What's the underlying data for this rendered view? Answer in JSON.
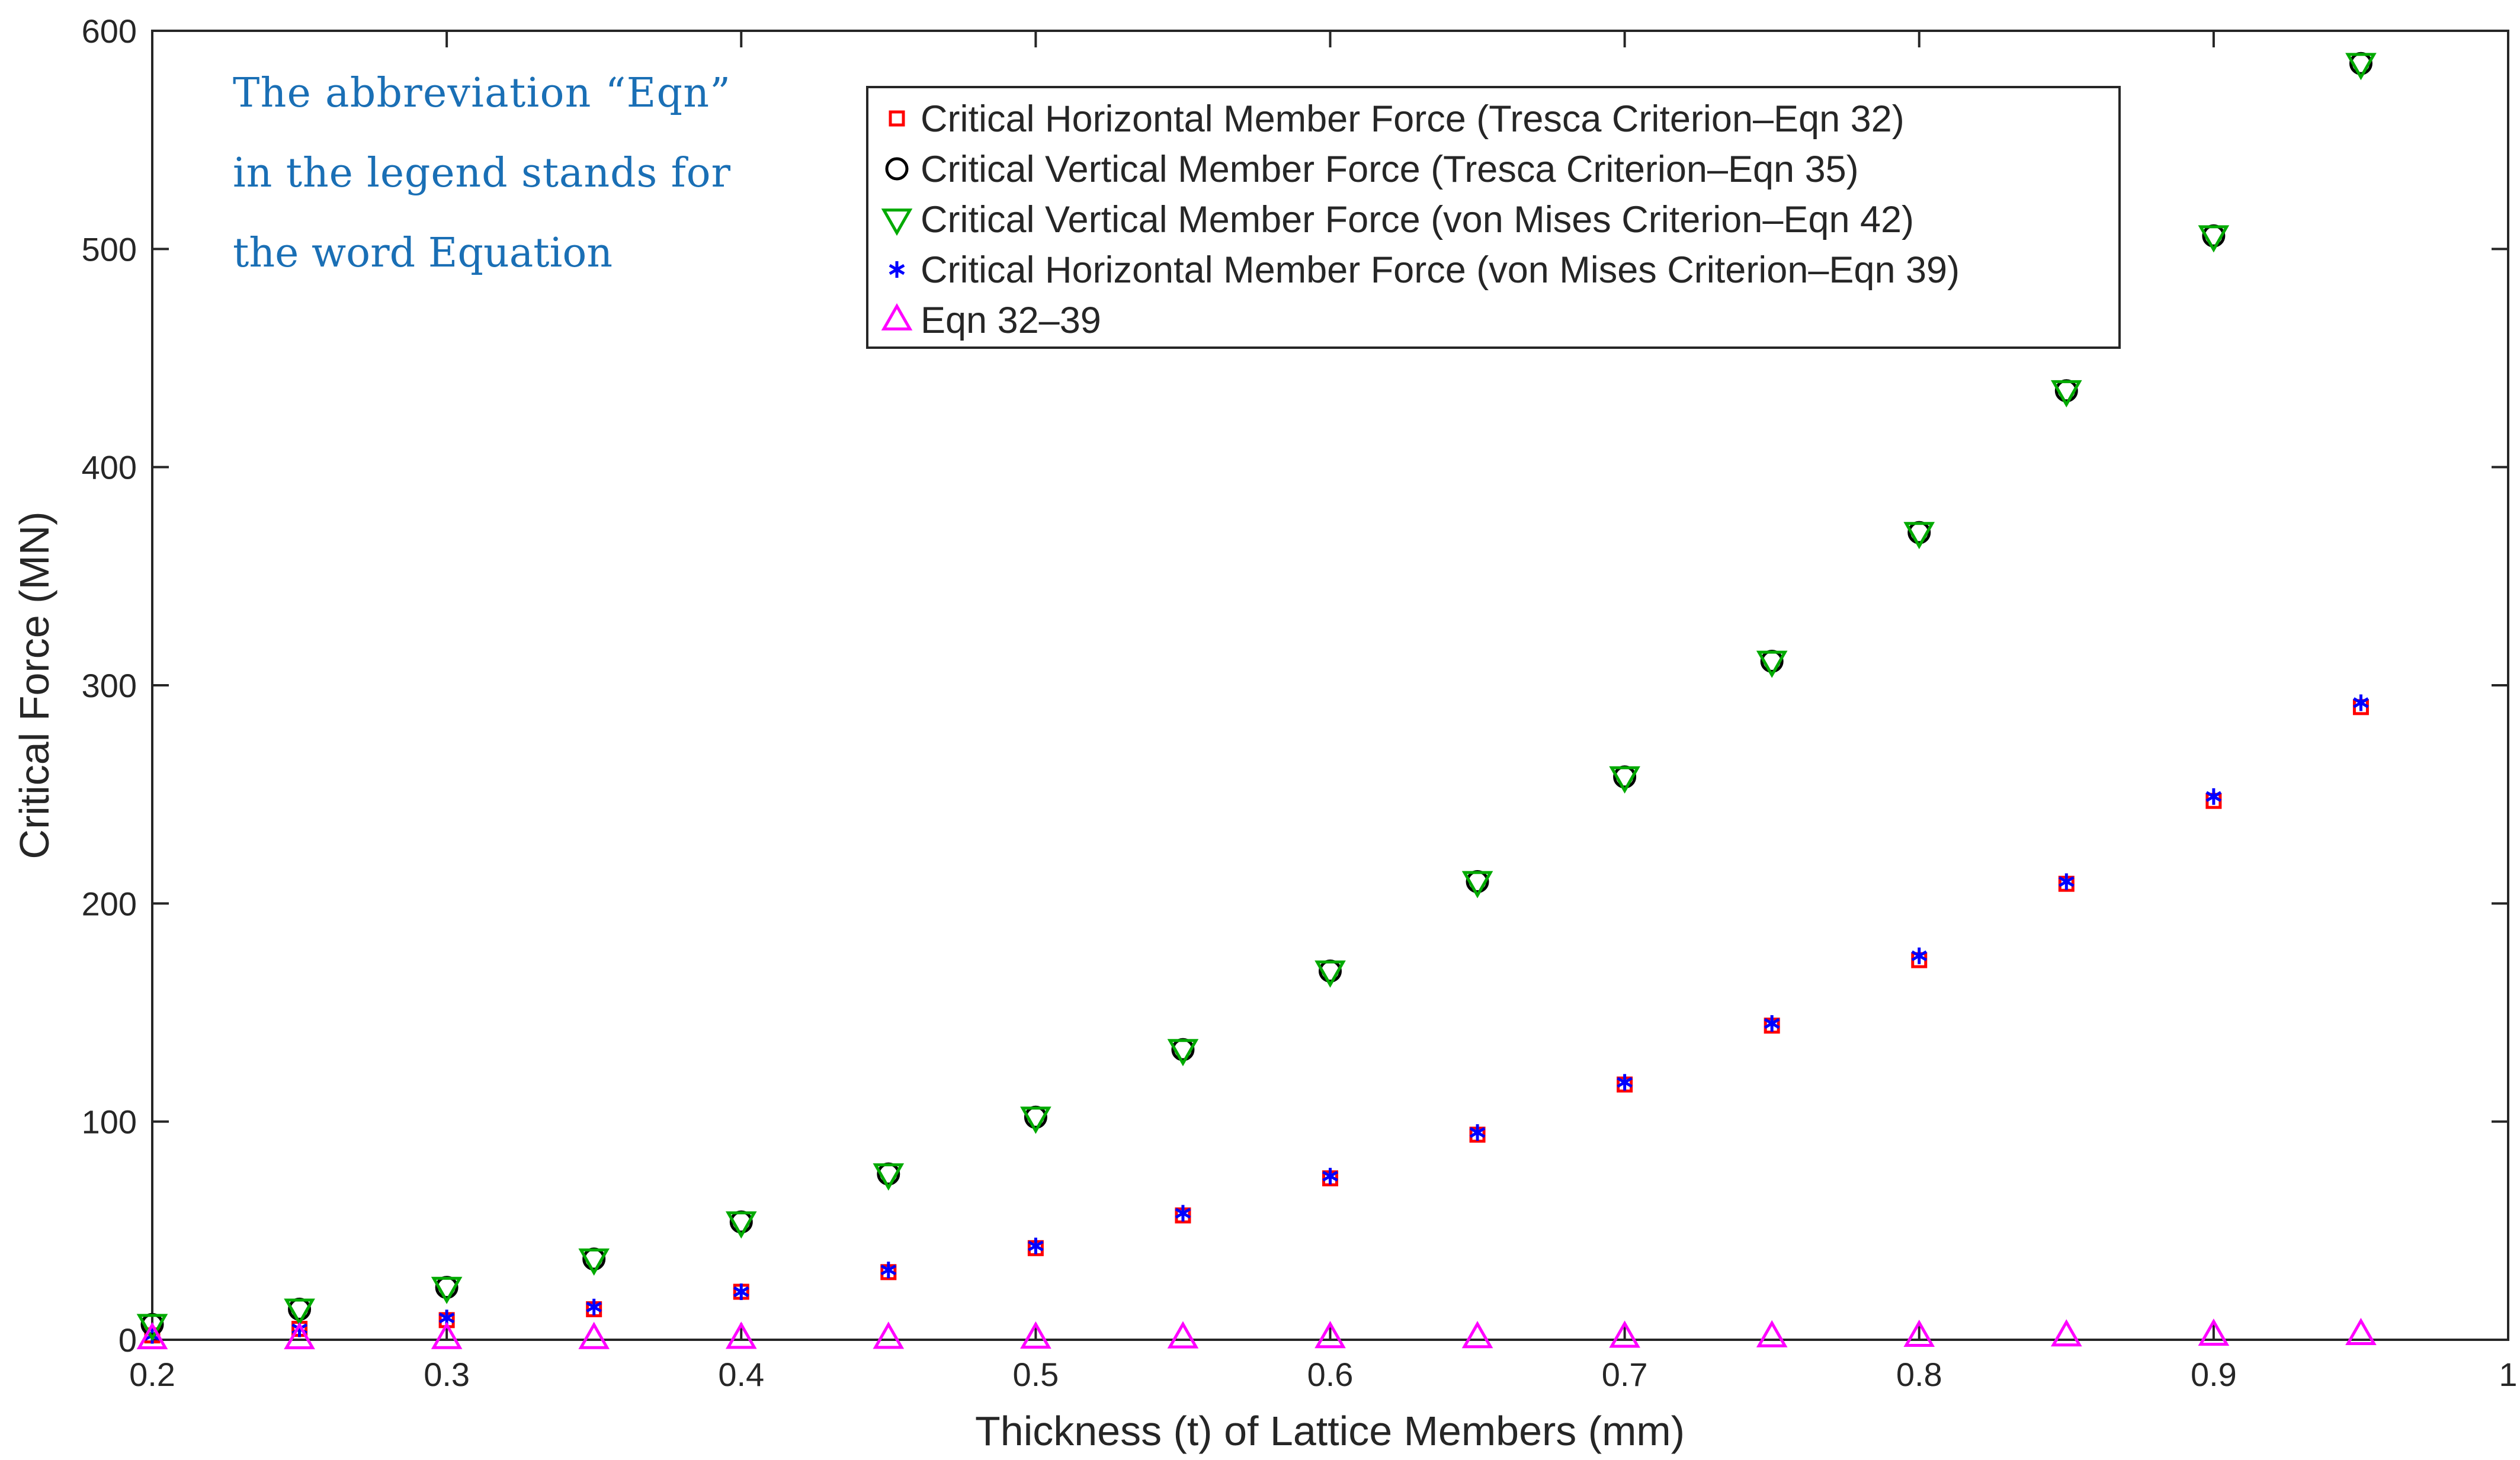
{
  "chart_data": {
    "type": "scatter",
    "title": "",
    "xlabel": "Thickness (t) of Lattice Members (mm)",
    "ylabel": "Critical Force (MN)",
    "xlim": [
      0.2,
      1
    ],
    "ylim": [
      0,
      600
    ],
    "grid": false,
    "legend_position": "top-center",
    "x_ticks": [
      0.2,
      0.3,
      0.4,
      0.5,
      0.6,
      0.7,
      0.8,
      0.9,
      1
    ],
    "x_tick_labels": [
      "0.2",
      "0.3",
      "0.4",
      "0.5",
      "0.6",
      "0.7",
      "0.8",
      "0.9",
      "1"
    ],
    "y_ticks": [
      0,
      100,
      200,
      300,
      400,
      500,
      600
    ],
    "y_tick_labels": [
      "0",
      "100",
      "200",
      "300",
      "400",
      "500",
      "600"
    ],
    "x": [
      0.2,
      0.25,
      0.3,
      0.35,
      0.4,
      0.45,
      0.5,
      0.55,
      0.6,
      0.65,
      0.7,
      0.75,
      0.8,
      0.85,
      0.9,
      0.95
    ],
    "series": [
      {
        "name": "Critical Horizontal Member Force (Tresca Criterion–Eqn 32)",
        "marker": "square",
        "color": "#ff0000",
        "values": [
          2,
          5,
          9,
          14,
          22,
          31,
          42,
          57,
          74,
          94,
          117,
          144,
          174,
          209,
          247,
          290
        ]
      },
      {
        "name": "Critical Vertical Member Force (Tresca Criterion–Eqn 35)",
        "marker": "circle",
        "color": "#000000",
        "values": [
          7,
          14,
          24,
          37,
          54,
          76,
          102,
          133,
          169,
          210,
          258,
          311,
          370,
          435,
          506,
          585
        ]
      },
      {
        "name": "Critical Vertical Member Force (von Mises Criterion–Eqn 42)",
        "marker": "triangle-down",
        "color": "#00aa00",
        "values": [
          7,
          14,
          24,
          37,
          54,
          76,
          102,
          133,
          169,
          210,
          258,
          311,
          370,
          435,
          506,
          585
        ]
      },
      {
        "name": "Critical Horizontal Member Force (von Mises Criterion–Eqn 39)",
        "marker": "asterisk",
        "color": "#0000ff",
        "values": [
          2,
          5,
          10,
          15,
          22,
          32,
          43,
          58,
          75,
          95,
          118,
          145,
          176,
          210,
          249,
          292
        ]
      },
      {
        "name": "Eqn 32–39",
        "marker": "triangle-up",
        "color": "#ff00ff",
        "values": [
          0.5,
          0.5,
          0.6,
          0.6,
          0.7,
          0.7,
          0.8,
          0.9,
          1.0,
          1.0,
          1.2,
          1.4,
          1.6,
          1.8,
          2.1,
          2.4
        ]
      }
    ],
    "annotation": [
      "The abbreviation “Eqn”",
      "in the legend stands for",
      "the word Equation"
    ]
  }
}
